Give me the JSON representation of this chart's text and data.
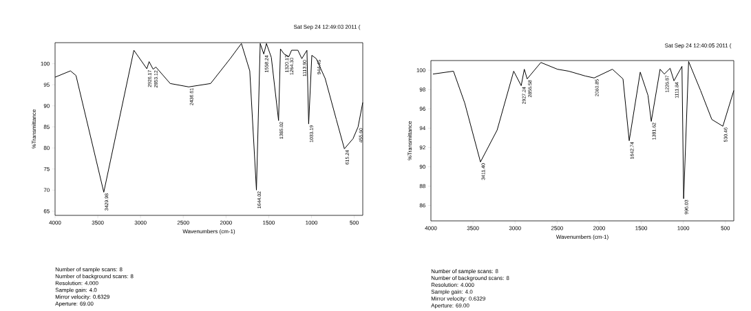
{
  "chart_data": [
    {
      "type": "line",
      "subtitle": "Sat Sep 24 12:49:03 2011 (",
      "xlabel": "Wavenumbers (cm-1)",
      "ylabel": "%Transmittance",
      "color": "#000000",
      "x": [
        4000,
        3820,
        3755,
        3430,
        3078,
        2926,
        2900,
        2853,
        2820,
        2653,
        2436,
        2180,
        1951,
        1820,
        1722,
        1644,
        1600,
        1558,
        1527,
        1470,
        1385,
        1363,
        1320,
        1264,
        1233,
        1159,
        1113,
        1053,
        1033,
        996,
        944,
        840,
        710,
        615,
        514,
        455,
        400
      ],
      "values": [
        96.8,
        98.3,
        97.2,
        69.5,
        103.2,
        98.8,
        100.5,
        98.7,
        99.2,
        95.3,
        94.5,
        95.3,
        101.2,
        104.8,
        98.3,
        70,
        104.8,
        102.3,
        104.8,
        101.5,
        86.5,
        103.5,
        102.3,
        101.7,
        103.2,
        103.2,
        101.2,
        103.2,
        85.7,
        102,
        101.2,
        96.5,
        86.8,
        79.8,
        82.2,
        85,
        90.8
      ],
      "xlim": [
        4000,
        400
      ],
      "ylim": [
        64,
        105
      ],
      "xticks": [
        4000,
        3500,
        3000,
        2500,
        2000,
        1500,
        1000,
        500
      ],
      "yticks": [
        65,
        70,
        75,
        80,
        85,
        90,
        95,
        100
      ],
      "annotations": [
        {
          "text": "3429.98",
          "x": 3430,
          "y": 69.5
        },
        {
          "text": "2926.17",
          "x": 2926,
          "y": 98.8
        },
        {
          "text": "2853.12",
          "x": 2853,
          "y": 98.7
        },
        {
          "text": "2436.61",
          "x": 2436,
          "y": 94.5
        },
        {
          "text": "1644.02",
          "x": 1644,
          "y": 70
        },
        {
          "text": "1558.24",
          "x": 1558,
          "y": 102.3
        },
        {
          "text": "1385.02",
          "x": 1385,
          "y": 86.5
        },
        {
          "text": "1320.17",
          "x": 1320,
          "y": 102.3
        },
        {
          "text": "1264.30",
          "x": 1264,
          "y": 101.7
        },
        {
          "text": "1113.90",
          "x": 1113,
          "y": 101.2
        },
        {
          "text": "1033.19",
          "x": 1033,
          "y": 85.7
        },
        {
          "text": "944.45",
          "x": 944,
          "y": 101.2
        },
        {
          "text": "615.24",
          "x": 615,
          "y": 79.8
        },
        {
          "text": "455.60",
          "x": 455,
          "y": 85
        },
        "Number of sample scans: 8",
        "Number of background scans: 8",
        "Resolution: 4.000",
        "Sample gain: 4.0",
        "Mirror velocity: 0.6329",
        "Aperture: 69.00"
      ]
    },
    {
      "type": "line",
      "subtitle": "Sat Sep 24 12:40:05 2011 (",
      "xlabel": "Wavenumbers (cm-1)",
      "ylabel": "%Transmittance",
      "color": "#000000",
      "x": [
        3976,
        3732,
        3598,
        3411,
        3213,
        3016,
        2927,
        2890,
        2856,
        2693,
        2496,
        2362,
        2165,
        2060,
        1843,
        1717,
        1643,
        1512,
        1420,
        1381,
        1276,
        1226,
        1157,
        1111,
        1016,
        996,
        937,
        795,
        661,
        530,
        400
      ],
      "values": [
        99.6,
        99.9,
        96.6,
        90.5,
        93.8,
        99.9,
        98.4,
        100.1,
        99.1,
        100.8,
        100.1,
        99.9,
        99.4,
        99.2,
        100.1,
        99.1,
        92.7,
        99.8,
        97.4,
        94.7,
        100.1,
        99.6,
        100.2,
        98.9,
        100.4,
        86.7,
        100.9,
        97.9,
        94.9,
        94.2,
        97.9
      ],
      "xlim": [
        4000,
        400
      ],
      "ylim": [
        84.4,
        101
      ],
      "xticks": [
        4000,
        3500,
        3000,
        2500,
        2000,
        1500,
        1000,
        500
      ],
      "yticks": [
        86,
        88,
        90,
        92,
        94,
        96,
        98,
        100
      ],
      "annotations": [
        {
          "text": "3411.40",
          "x": 3411,
          "y": 90.5
        },
        {
          "text": "2927.24",
          "x": 2927,
          "y": 98.4
        },
        {
          "text": "2856.58",
          "x": 2856,
          "y": 99.1
        },
        {
          "text": "2060.85",
          "x": 2060,
          "y": 99.2
        },
        {
          "text": "1642.74",
          "x": 1643,
          "y": 92.7
        },
        {
          "text": "1381.62",
          "x": 1381,
          "y": 94.7
        },
        {
          "text": "1226.87",
          "x": 1226,
          "y": 99.6
        },
        {
          "text": "1111.84",
          "x": 1111,
          "y": 98.9
        },
        {
          "text": "996.03",
          "x": 996,
          "y": 86.7
        },
        {
          "text": "530.46",
          "x": 530,
          "y": 94.2
        },
        "Number of sample scans: 8",
        "Number of background scans: 8",
        "Resolution: 4.000",
        "Sample gain: 4.0",
        "Mirror velocity: 0.6329",
        "Aperture: 69.00"
      ]
    }
  ]
}
